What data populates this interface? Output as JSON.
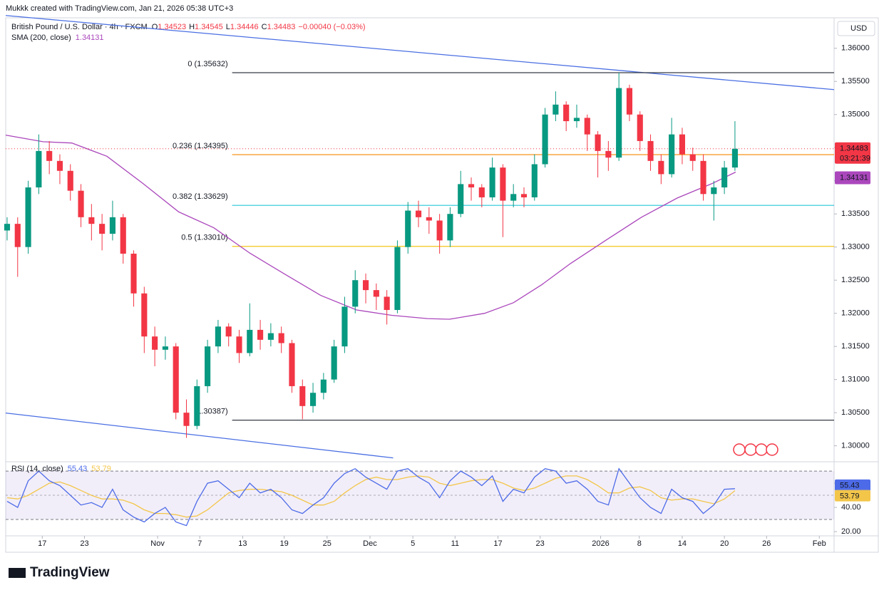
{
  "attribution": "Mukkk created with TradingView.com, Jan 21, 2026 05:38 UTC+3",
  "brand": "TradingView",
  "currency": "USD",
  "countdown": "03:21:39",
  "chart_data": [
    {
      "type": "candlestick",
      "title": "British Pound / U.S. Dollar · 4h · FXCM",
      "ohlc_letters": [
        "O",
        "H",
        "L",
        "C"
      ],
      "ohlc_values": [
        1.34523,
        1.34545,
        1.34446,
        1.34483
      ],
      "change": "−0.00040 (−0.03%)",
      "up_color": "#089981",
      "down_color": "#f23645",
      "xlim": [
        -5.2,
        112.6
      ],
      "xticks": [
        {
          "value": 0,
          "label": "17"
        },
        {
          "value": 6,
          "label": "23"
        },
        {
          "value": 16.4,
          "label": "Nov"
        },
        {
          "value": 22.4,
          "label": "7"
        },
        {
          "value": 28.5,
          "label": "13"
        },
        {
          "value": 34.4,
          "label": "19"
        },
        {
          "value": 40.5,
          "label": "25"
        },
        {
          "value": 46.6,
          "label": "Dec"
        },
        {
          "value": 52.7,
          "label": "5"
        },
        {
          "value": 58.7,
          "label": "11"
        },
        {
          "value": 64.8,
          "label": "17"
        },
        {
          "value": 70.8,
          "label": "23"
        },
        {
          "value": 79.4,
          "label": "2026"
        },
        {
          "value": 84.9,
          "label": "8"
        },
        {
          "value": 91,
          "label": "14"
        },
        {
          "value": 97,
          "label": "20"
        },
        {
          "value": 103,
          "label": "26"
        },
        {
          "value": 110.5,
          "label": "Feb"
        }
      ],
      "ylim": [
        1.2977,
        1.3646
      ],
      "yticks": [
        {
          "value": 1.36,
          "label": "1.36000"
        },
        {
          "value": 1.355,
          "label": "1.35500"
        },
        {
          "value": 1.35,
          "label": "1.35000"
        },
        {
          "value": 1.345,
          "label": "1.34500"
        },
        {
          "value": 1.34,
          "label": "1.34000"
        },
        {
          "value": 1.335,
          "label": "1.33500"
        },
        {
          "value": 1.33,
          "label": "1.33000"
        },
        {
          "value": 1.325,
          "label": "1.32500"
        },
        {
          "value": 1.32,
          "label": "1.32000"
        },
        {
          "value": 1.315,
          "label": "1.31500"
        },
        {
          "value": 1.31,
          "label": "1.31000"
        },
        {
          "value": 1.305,
          "label": "1.30500"
        },
        {
          "value": 1.3,
          "label": "1.30000"
        }
      ],
      "x": [
        -5,
        -3.5,
        -2,
        -0.5,
        1,
        2.5,
        4,
        5.5,
        7,
        8.5,
        10,
        11.5,
        13,
        14.5,
        16,
        17.5,
        19,
        20.5,
        22,
        23.5,
        25,
        26.5,
        28,
        29.5,
        31,
        32.5,
        34,
        35.5,
        37,
        38.5,
        40,
        41.5,
        43,
        44.5,
        46,
        47.5,
        49,
        50.5,
        52,
        53.5,
        55,
        56.5,
        58,
        59.5,
        61,
        62.5,
        64,
        65.5,
        67,
        68.5,
        70,
        71.5,
        73,
        74.5,
        76,
        77.5,
        79,
        80.5,
        82,
        83.5,
        85,
        86.5,
        88,
        89.5,
        91,
        92.5,
        94,
        95.5,
        97,
        98.5
      ],
      "open": [
        1.3325,
        1.3335,
        1.33,
        1.339,
        1.3445,
        1.343,
        1.3415,
        1.3385,
        1.3345,
        1.3335,
        1.332,
        1.3345,
        1.329,
        1.323,
        1.3165,
        1.3145,
        1.315,
        1.305,
        1.303,
        1.309,
        1.315,
        1.318,
        1.3165,
        1.314,
        1.3175,
        1.316,
        1.317,
        1.3155,
        1.309,
        1.306,
        1.308,
        1.31,
        1.315,
        1.321,
        1.325,
        1.3235,
        1.3225,
        1.3205,
        1.33,
        1.3355,
        1.3345,
        1.334,
        1.331,
        1.335,
        1.3395,
        1.339,
        1.3375,
        1.342,
        1.337,
        1.338,
        1.3375,
        1.3425,
        1.35,
        1.3515,
        1.349,
        1.3495,
        1.347,
        1.3445,
        1.3435,
        1.354,
        1.35,
        1.346,
        1.343,
        1.341,
        1.347,
        1.344,
        1.343,
        1.338,
        1.339,
        1.342
      ],
      "high": [
        1.3345,
        1.3345,
        1.34,
        1.347,
        1.346,
        1.344,
        1.3425,
        1.3395,
        1.3365,
        1.335,
        1.337,
        1.335,
        1.3295,
        1.324,
        1.318,
        1.3165,
        1.3155,
        1.307,
        1.31,
        1.316,
        1.319,
        1.3185,
        1.3175,
        1.3215,
        1.319,
        1.3185,
        1.318,
        1.316,
        1.31,
        1.3095,
        1.311,
        1.316,
        1.3225,
        1.3265,
        1.326,
        1.3245,
        1.3235,
        1.331,
        1.3368,
        1.337,
        1.336,
        1.335,
        1.336,
        1.3415,
        1.3405,
        1.3395,
        1.3435,
        1.3425,
        1.3395,
        1.339,
        1.344,
        1.351,
        1.3535,
        1.352,
        1.3515,
        1.35,
        1.3475,
        1.346,
        1.35632,
        1.3545,
        1.3505,
        1.347,
        1.344,
        1.3495,
        1.348,
        1.345,
        1.344,
        1.34,
        1.343,
        1.349
      ],
      "low": [
        1.331,
        1.3255,
        1.329,
        1.338,
        1.341,
        1.3395,
        1.337,
        1.333,
        1.331,
        1.3295,
        1.331,
        1.3275,
        1.321,
        1.314,
        1.312,
        1.313,
        1.304,
        1.3012,
        1.3025,
        1.308,
        1.314,
        1.315,
        1.3125,
        1.3135,
        1.3145,
        1.315,
        1.314,
        1.308,
        1.304,
        1.305,
        1.307,
        1.3095,
        1.314,
        1.32,
        1.3215,
        1.3205,
        1.3183,
        1.32,
        1.329,
        1.333,
        1.332,
        1.329,
        1.33,
        1.3345,
        1.337,
        1.336,
        1.337,
        1.3315,
        1.336,
        1.336,
        1.337,
        1.342,
        1.349,
        1.3475,
        1.348,
        1.3445,
        1.3405,
        1.3415,
        1.343,
        1.349,
        1.3445,
        1.3415,
        1.3395,
        1.3405,
        1.3425,
        1.3415,
        1.337,
        1.334,
        1.338,
        1.3415
      ],
      "close": [
        1.3335,
        1.33,
        1.339,
        1.3445,
        1.343,
        1.3415,
        1.3385,
        1.3345,
        1.3335,
        1.332,
        1.3345,
        1.329,
        1.323,
        1.3165,
        1.3145,
        1.315,
        1.305,
        1.303,
        1.309,
        1.315,
        1.318,
        1.3165,
        1.314,
        1.3175,
        1.316,
        1.317,
        1.3155,
        1.309,
        1.306,
        1.308,
        1.31,
        1.315,
        1.321,
        1.325,
        1.3235,
        1.3225,
        1.3205,
        1.33,
        1.3355,
        1.3345,
        1.334,
        1.331,
        1.335,
        1.3395,
        1.339,
        1.3375,
        1.342,
        1.337,
        1.338,
        1.3375,
        1.3425,
        1.35,
        1.3515,
        1.349,
        1.3495,
        1.347,
        1.3445,
        1.3435,
        1.354,
        1.35,
        1.346,
        1.343,
        1.341,
        1.347,
        1.344,
        1.343,
        1.338,
        1.339,
        1.342,
        1.34483
      ],
      "sma": {
        "name": "SMA (200, close)",
        "color": "#ab47bc",
        "x": [
          -5.2,
          0.1,
          4.2,
          9.2,
          14.3,
          19.4,
          24.4,
          29.5,
          34.5,
          39.6,
          44.7,
          49.7,
          54.8,
          57.9,
          62.9,
          67,
          71,
          75.1,
          80.1,
          85.2,
          90.3,
          95.3,
          98.6
        ],
        "values": [
          1.3469,
          1.3459,
          1.3457,
          1.3437,
          1.3396,
          1.3353,
          1.3329,
          1.3291,
          1.3259,
          1.3227,
          1.3205,
          1.3197,
          1.3192,
          1.3191,
          1.32,
          1.3216,
          1.3243,
          1.3275,
          1.331,
          1.3345,
          1.3374,
          1.3396,
          1.34131
        ]
      },
      "fib_start_x": 27,
      "fib_levels": [
        {
          "label": "0 (1.35632)",
          "value": 1.35632,
          "color": "#363a45"
        },
        {
          "label": "0.236 (1.34395)",
          "value": 1.34395,
          "color": "#f7931a"
        },
        {
          "label": "0.382 (1.33629)",
          "value": 1.33629,
          "color": "#26c6da"
        },
        {
          "label": "0.5 (1.33010)",
          "value": 1.3301,
          "color": "#f5c518"
        },
        {
          "label": "(1.30387)",
          "value": 1.30387,
          "color": "#363a45"
        }
      ],
      "trendlines": [
        {
          "x": [
            -5.2,
            112.6
          ],
          "y": [
            1.36495,
            1.35376
          ],
          "color": "#4a6fe3"
        },
        {
          "x": [
            -5.2,
            49.9
          ],
          "y": [
            1.30495,
            1.29817
          ],
          "color": "#4a6fe3"
        }
      ]
    },
    {
      "type": "line",
      "title": "RSI (14, close)",
      "ylim": [
        16.5,
        77.1
      ],
      "yticks": [
        {
          "value": 60,
          "label": "60.00"
        },
        {
          "value": 40,
          "label": "40.00"
        },
        {
          "value": 20,
          "label": "20.00"
        }
      ],
      "band": [
        70,
        30
      ],
      "midline": 50,
      "series": [
        {
          "color": "#4d6be8",
          "values": [
            45,
            40,
            62,
            70,
            62,
            58,
            50,
            42,
            44,
            40,
            55,
            38,
            32,
            28,
            35,
            40,
            28,
            25,
            45,
            60,
            62,
            55,
            48,
            60,
            52,
            55,
            48,
            38,
            35,
            42,
            48,
            60,
            68,
            72,
            65,
            60,
            55,
            70,
            72,
            65,
            60,
            48,
            62,
            70,
            65,
            58,
            66,
            45,
            55,
            52,
            65,
            72,
            70,
            60,
            62,
            55,
            45,
            42,
            72,
            60,
            48,
            40,
            35,
            55,
            48,
            45,
            35,
            42,
            55,
            55.43
          ]
        },
        {
          "color": "#f3c64a",
          "values": [
            48,
            47,
            50,
            55,
            60,
            61,
            58,
            54,
            50,
            47,
            47,
            46,
            43,
            38,
            35,
            35,
            34,
            32,
            33,
            38,
            45,
            52,
            54,
            55,
            55,
            54,
            53,
            50,
            46,
            42,
            42,
            45,
            52,
            58,
            63,
            65,
            63,
            63,
            65,
            66,
            65,
            60,
            58,
            60,
            62,
            63,
            63,
            60,
            56,
            54,
            56,
            60,
            64,
            66,
            66,
            63,
            58,
            52,
            52,
            56,
            57,
            54,
            48,
            46,
            47,
            47,
            45,
            43,
            47,
            53.79
          ]
        }
      ]
    }
  ]
}
